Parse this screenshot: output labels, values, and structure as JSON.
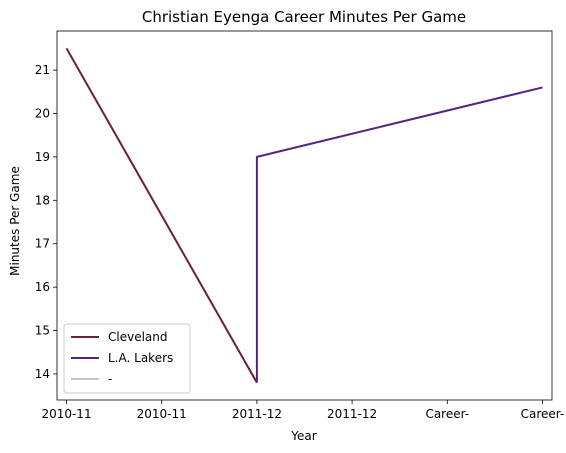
{
  "chart_data": {
    "type": "line",
    "title": "Christian Eyenga Career Minutes Per Game",
    "xlabel": "Year",
    "ylabel": "Minutes Per Game",
    "x_tick_labels": [
      "2010-11",
      "2010-11",
      "2011-12",
      "2011-12",
      "Career-",
      "Career-"
    ],
    "xlim": [
      -0.1,
      5.1
    ],
    "ylim": [
      13.4,
      21.9
    ],
    "y_ticks": [
      14,
      15,
      16,
      17,
      18,
      19,
      20,
      21
    ],
    "grid": false,
    "legend_position": "lower-left",
    "series": [
      {
        "name": "Cleveland",
        "color": "#6b2238",
        "points": [
          [
            0,
            21.5
          ],
          [
            2.0,
            13.8
          ]
        ]
      },
      {
        "name": "L.A. Lakers",
        "color": "#552583",
        "points": [
          [
            2.0,
            13.8
          ],
          [
            2.0,
            19.0
          ],
          [
            5.0,
            20.6
          ]
        ]
      },
      {
        "name": "-",
        "color": "#c4c4c4",
        "points": []
      }
    ]
  }
}
